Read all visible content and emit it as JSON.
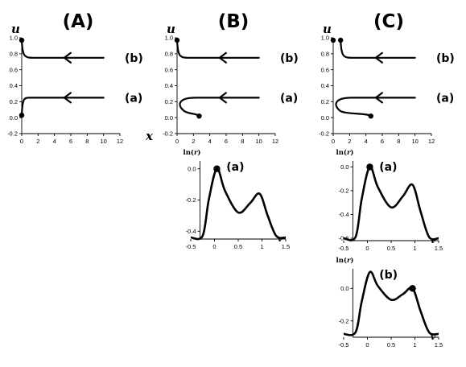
{
  "figure": {
    "panels": [
      {
        "id": "A",
        "letter": "(A)",
        "phase_plot": {
          "x_axis_label": "x",
          "y_axis_label": "u",
          "x_ticks": [
            "0",
            "2",
            "4",
            "6",
            "8",
            "10",
            "12"
          ],
          "y_ticks": [
            "-0.2",
            "0.0",
            "0.2",
            "0.4",
            "0.6",
            "0.8",
            "1.0"
          ],
          "xlim": [
            0,
            12
          ],
          "ylim": [
            -0.2,
            1.0
          ],
          "trajectories": [
            {
              "label": "(b)",
              "u_start": 0.75,
              "end_x": 0.0,
              "end_u": 0.97,
              "kind": "straight"
            },
            {
              "label": "(a)",
              "u_start": 0.25,
              "end_x": 0.0,
              "end_u": 0.03,
              "kind": "straight"
            }
          ]
        },
        "lnr_plots": []
      },
      {
        "id": "B",
        "letter": "(B)",
        "phase_plot": {
          "x_axis_label": "",
          "y_axis_label": "u",
          "x_ticks": [
            "0",
            "2",
            "4",
            "6",
            "8",
            "10",
            "12"
          ],
          "y_ticks": [
            "-0.2",
            "0.0",
            "0.2",
            "0.4",
            "0.6",
            "0.8",
            "1.0"
          ],
          "xlim": [
            0,
            12
          ],
          "ylim": [
            -0.2,
            1.0
          ],
          "trajectories": [
            {
              "label": "(b)",
              "u_start": 0.75,
              "end_x": 0.0,
              "end_u": 0.97,
              "kind": "straight"
            },
            {
              "label": "(a)",
              "u_start": 0.25,
              "end_x": 2.7,
              "end_u": 0.02,
              "kind": "hook"
            }
          ]
        },
        "lnr_plots": [
          {
            "label": "(a)",
            "y_axis_label_prefix": "ln(",
            "y_axis_label_var": "r",
            "y_axis_label_suffix": ")",
            "x_axis_label": "v",
            "x_ticks": [
              "-0.5",
              "0",
              "0.5",
              "1",
              "1.5"
            ],
            "y_ticks": [
              "0.0",
              "-0.2",
              "-0.4"
            ],
            "xlim": [
              -0.5,
              1.5
            ],
            "ylim": [
              -0.45,
              0.05
            ],
            "curve": {
              "peak1_v": 0.05,
              "peak2_v": 0.95,
              "peak2_value": -0.16,
              "trough_value": -0.28,
              "floor": -0.44
            },
            "marker_v": 0.05,
            "marker_value": 0.0
          }
        ]
      },
      {
        "id": "C",
        "letter": "(C)",
        "phase_plot": {
          "x_axis_label": "",
          "y_axis_label": "u",
          "x_ticks": [
            "0",
            "2",
            "4",
            "6",
            "8",
            "10",
            "12"
          ],
          "y_ticks": [
            "-0.2",
            "0.0",
            "0.2",
            "0.4",
            "0.6",
            "0.8",
            "1.0"
          ],
          "xlim": [
            0,
            12
          ],
          "ylim": [
            -0.2,
            1.0
          ],
          "trajectories": [
            {
              "label": "(b)",
              "u_start": 0.75,
              "end_x": 0.9,
              "end_u": 0.97,
              "kind": "straight",
              "extra_dot_x": 0.0,
              "extra_dot_u": 0.97
            },
            {
              "label": "(a)",
              "u_start": 0.25,
              "end_x": 4.6,
              "end_u": 0.02,
              "kind": "hook"
            }
          ]
        },
        "lnr_plots": [
          {
            "label": "(a)",
            "y_axis_label_prefix": "ln(",
            "y_axis_label_var": "r",
            "y_axis_label_suffix": ")",
            "x_axis_label": "v",
            "x_ticks": [
              "-0.5",
              "0",
              "0.5",
              "1",
              "1.5"
            ],
            "y_ticks": [
              "0.0",
              "-0.2",
              "-0.4",
              "-0.6"
            ],
            "xlim": [
              -0.5,
              1.5
            ],
            "ylim": [
              -0.62,
              0.05
            ],
            "curve": {
              "peak1_v": 0.05,
              "peak2_v": 0.95,
              "peak2_value": -0.15,
              "trough_value": -0.34,
              "floor": -0.6
            },
            "marker_v": 0.05,
            "marker_value": 0.0
          },
          {
            "label": "(b)",
            "y_axis_label_prefix": "ln(",
            "y_axis_label_var": "r",
            "y_axis_label_suffix": ")",
            "x_axis_label": "v",
            "x_ticks": [
              "-0.5",
              "0",
              "0.5",
              "1",
              "1.5"
            ],
            "y_ticks": [
              "0.0",
              "-0.2"
            ],
            "xlim": [
              -0.5,
              1.5
            ],
            "ylim": [
              -0.3,
              0.12
            ],
            "curve": {
              "peak1_v": 0.05,
              "peak2_v": 0.95,
              "peak1_value": 0.1,
              "peak2_value": 0.0,
              "trough_value": -0.07,
              "floor": -0.28
            },
            "marker_v": 0.95,
            "marker_value": 0.0
          }
        ]
      }
    ]
  }
}
